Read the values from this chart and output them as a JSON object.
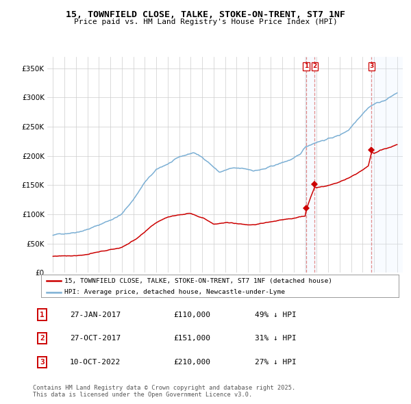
{
  "title": "15, TOWNFIELD CLOSE, TALKE, STOKE-ON-TRENT, ST7 1NF",
  "subtitle": "Price paid vs. HM Land Registry's House Price Index (HPI)",
  "legend_red": "15, TOWNFIELD CLOSE, TALKE, STOKE-ON-TRENT, ST7 1NF (detached house)",
  "legend_blue": "HPI: Average price, detached house, Newcastle-under-Lyme",
  "footer": "Contains HM Land Registry data © Crown copyright and database right 2025.\nThis data is licensed under the Open Government Licence v3.0.",
  "transactions": [
    {
      "label": "1",
      "date": "27-JAN-2017",
      "price": 110000,
      "hpi_pct": "49% ↓ HPI",
      "x": 2017.07
    },
    {
      "label": "2",
      "date": "27-OCT-2017",
      "price": 151000,
      "hpi_pct": "31% ↓ HPI",
      "x": 2017.82
    },
    {
      "label": "3",
      "date": "10-OCT-2022",
      "price": 210000,
      "hpi_pct": "27% ↓ HPI",
      "x": 2022.78
    }
  ],
  "red_color": "#cc0000",
  "blue_color": "#7bafd4",
  "vline_color": "#e08080",
  "vspan_color": "#ddeeff",
  "grid_color": "#cccccc",
  "background_color": "#ffffff",
  "ylim": [
    0,
    370000
  ],
  "xlim": [
    1994.5,
    2025.5
  ],
  "yticks": [
    0,
    50000,
    100000,
    150000,
    200000,
    250000,
    300000,
    350000
  ],
  "xticks": [
    1995,
    1996,
    1997,
    1998,
    1999,
    2000,
    2001,
    2002,
    2003,
    2004,
    2005,
    2006,
    2007,
    2008,
    2009,
    2010,
    2011,
    2012,
    2013,
    2014,
    2015,
    2016,
    2017,
    2018,
    2019,
    2020,
    2021,
    2022,
    2023,
    2024,
    2025
  ]
}
